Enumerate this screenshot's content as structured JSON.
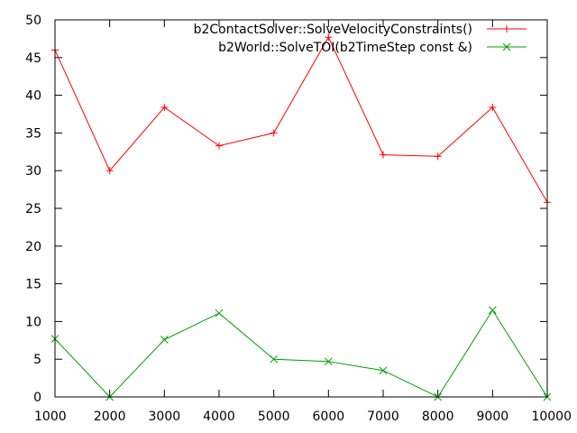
{
  "chart_data": {
    "type": "line",
    "x": [
      1000,
      2000,
      3000,
      4000,
      5000,
      6000,
      7000,
      8000,
      9000,
      10000
    ],
    "xlim": [
      1000,
      10000
    ],
    "ylim": [
      0,
      50
    ],
    "xticks": [
      1000,
      2000,
      3000,
      4000,
      5000,
      6000,
      7000,
      8000,
      9000,
      10000
    ],
    "yticks": [
      0,
      5,
      10,
      15,
      20,
      25,
      30,
      35,
      40,
      45,
      50
    ],
    "grid": false,
    "legend_position": "top-right",
    "series": [
      {
        "name": "b2ContactSolver::SolveVelocityConstraints()",
        "color": "#ff0000",
        "marker": "plus",
        "values": [
          46.0,
          30.0,
          38.4,
          33.3,
          35.0,
          47.7,
          32.1,
          31.9,
          38.4,
          25.8
        ]
      },
      {
        "name": "b2World::SolveTOI(b2TimeStep const &)",
        "color": "#00a000",
        "marker": "cross",
        "values": [
          7.7,
          0.0,
          7.6,
          11.1,
          5.0,
          4.7,
          3.5,
          0.0,
          11.5,
          0.0
        ]
      }
    ]
  }
}
